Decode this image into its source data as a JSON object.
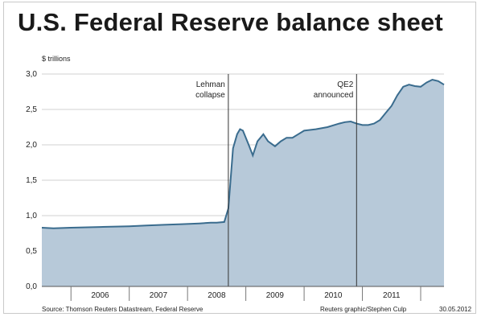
{
  "chart_data": {
    "type": "area",
    "title": "U.S. Federal Reserve balance sheet",
    "unit_label": "$ trillions",
    "ylim": [
      0,
      3.0
    ],
    "y_ticks": [
      "0,0",
      "0,5",
      "1,0",
      "1,5",
      "2,0",
      "2,5",
      "3,0"
    ],
    "x_ticks": [
      "2006",
      "2007",
      "2008",
      "2009",
      "2010",
      "2011"
    ],
    "xlim": [
      2005.5,
      2012.4
    ],
    "series": [
      {
        "x": [
          2005.5,
          2005.7,
          2006.0,
          2006.5,
          2007.0,
          2007.3,
          2007.6,
          2007.9,
          2008.2,
          2008.4,
          2008.5,
          2008.63,
          2008.7,
          2008.78,
          2008.85,
          2008.9,
          2008.95,
          2009.05,
          2009.12,
          2009.2,
          2009.3,
          2009.38,
          2009.5,
          2009.6,
          2009.7,
          2009.8,
          2009.9,
          2010.0,
          2010.2,
          2010.4,
          2010.6,
          2010.7,
          2010.8,
          2010.9,
          2011.0,
          2011.1,
          2011.2,
          2011.3,
          2011.4,
          2011.5,
          2011.6,
          2011.7,
          2011.8,
          2011.9,
          2012.0,
          2012.1,
          2012.2,
          2012.3,
          2012.4
        ],
        "values": [
          0.83,
          0.82,
          0.83,
          0.84,
          0.85,
          0.86,
          0.87,
          0.88,
          0.89,
          0.9,
          0.9,
          0.91,
          1.1,
          1.95,
          2.15,
          2.22,
          2.2,
          2.0,
          1.85,
          2.05,
          2.15,
          2.05,
          1.98,
          2.05,
          2.1,
          2.1,
          2.15,
          2.2,
          2.22,
          2.25,
          2.3,
          2.32,
          2.33,
          2.3,
          2.28,
          2.28,
          2.3,
          2.35,
          2.45,
          2.55,
          2.7,
          2.82,
          2.85,
          2.83,
          2.82,
          2.88,
          2.92,
          2.9,
          2.85
        ]
      }
    ],
    "annotations": [
      {
        "x": 2008.7,
        "lines": [
          "Lehman",
          "collapse"
        ]
      },
      {
        "x": 2010.9,
        "lines": [
          "QE2",
          "announced"
        ]
      }
    ],
    "grid": true,
    "fill_color": "#b7c9d9",
    "line_color": "#3a6c8e"
  },
  "footer": {
    "source": "Source: Thomson Reuters Datastream, Federal Reserve",
    "credit": "Reuters graphic/Stephen Culp",
    "date": "30.05.2012"
  }
}
